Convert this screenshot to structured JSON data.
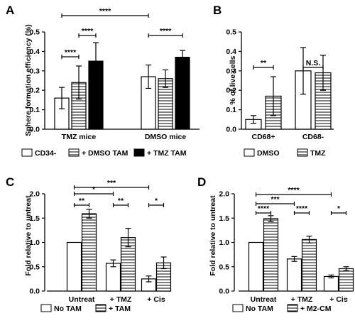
{
  "chart_data": [
    {
      "panel_letter": "A",
      "type": "bar",
      "ylabel": "Sphere formation efficiency (%)",
      "ylim": [
        0,
        0.5
      ],
      "yticks": [
        "0.0",
        "0.1",
        "0.2",
        "0.3",
        "0.4",
        "0.5"
      ],
      "yticks_values": [
        0,
        0.1,
        0.2,
        0.3,
        0.4,
        0.5
      ],
      "categories": [
        "TMZ mice",
        "DMSO mice"
      ],
      "series": [
        {
          "name": "CD34-",
          "fill": "white",
          "values": [
            0.16,
            0.27
          ],
          "errors": [
            0.055,
            0.06
          ]
        },
        {
          "name": "+ DMSO TAM",
          "fill": "hatch",
          "values": [
            0.24,
            0.26
          ],
          "errors": [
            0.085,
            0.045
          ]
        },
        {
          "name": "+ TMZ TAM",
          "fill": "black",
          "values": [
            0.35,
            0.37
          ],
          "errors": [
            0.095,
            0.035
          ]
        }
      ],
      "annotations": [
        {
          "label": "****",
          "from": [
            0,
            0
          ],
          "to": [
            0,
            1
          ],
          "row": 0
        },
        {
          "label": "****",
          "from": [
            0,
            1
          ],
          "to": [
            0,
            2
          ],
          "row": 1
        },
        {
          "label": "****",
          "from": [
            1,
            0
          ],
          "to": [
            1,
            2
          ],
          "row": 1
        },
        {
          "label": "****",
          "from": [
            0,
            0
          ],
          "to": [
            1,
            0
          ],
          "row": 2
        }
      ]
    },
    {
      "panel_letter": "B",
      "type": "bar",
      "ylabel": "% of live cells",
      "ylim": [
        0,
        0.5
      ],
      "yticks": [
        "0.0",
        "0.1",
        "0.2",
        "0.3",
        "0.4",
        "0.5"
      ],
      "yticks_values": [
        0,
        0.1,
        0.2,
        0.3,
        0.4,
        0.5
      ],
      "categories": [
        "CD68+",
        "CD68-"
      ],
      "series": [
        {
          "name": "DMSO",
          "fill": "white",
          "values": [
            0.05,
            0.3
          ],
          "errors": [
            0.02,
            0.12
          ]
        },
        {
          "name": "TMZ",
          "fill": "hatch",
          "values": [
            0.17,
            0.29
          ],
          "errors": [
            0.1,
            0.09
          ]
        }
      ],
      "annotations": [
        {
          "label": "**",
          "from": [
            0,
            0
          ],
          "to": [
            0,
            1
          ],
          "row": 0
        },
        {
          "label": "N.S.",
          "from": [
            1,
            0
          ],
          "to": [
            1,
            1
          ],
          "row": 0
        }
      ]
    },
    {
      "panel_letter": "C",
      "type": "bar",
      "ylabel": "Fold relative to untreat",
      "ylim": [
        0,
        2.0
      ],
      "yticks": [
        "0.0",
        "0.5",
        "1.0",
        "1.5",
        "2.0"
      ],
      "yticks_values": [
        0,
        0.5,
        1.0,
        1.5,
        2.0
      ],
      "categories": [
        "Untreat",
        "+ TMZ",
        "+ Cis"
      ],
      "series": [
        {
          "name": "No TAM",
          "fill": "white",
          "values": [
            1.0,
            0.57,
            0.25
          ],
          "errors": [
            0,
            0.07,
            0.06
          ]
        },
        {
          "name": "+ TAM",
          "fill": "hatch",
          "values": [
            1.59,
            1.1,
            0.58
          ],
          "errors": [
            0.09,
            0.19,
            0.12
          ]
        }
      ],
      "annotations": [
        {
          "label": "**",
          "from": [
            0,
            0
          ],
          "to": [
            0,
            1
          ],
          "row": 0
        },
        {
          "label": "**",
          "from": [
            1,
            0
          ],
          "to": [
            1,
            1
          ],
          "row": 0
        },
        {
          "label": "*",
          "from": [
            2,
            0
          ],
          "to": [
            2,
            1
          ],
          "row": 0
        },
        {
          "label": "*",
          "from": [
            0,
            0
          ],
          "to": [
            1,
            0
          ],
          "row": 1
        },
        {
          "label": "***",
          "from": [
            0,
            0
          ],
          "to": [
            2,
            0
          ],
          "row": 2
        }
      ]
    },
    {
      "panel_letter": "D",
      "type": "bar",
      "ylabel": "Fold relative to untreat",
      "ylim": [
        0,
        2.0
      ],
      "yticks": [
        "0.0",
        "0.5",
        "1.0",
        "1.5",
        "2.0"
      ],
      "yticks_values": [
        0,
        0.5,
        1.0,
        1.5,
        2.0
      ],
      "categories": [
        "Untreat",
        "+ TMZ",
        "+ Cis"
      ],
      "series": [
        {
          "name": "No TAM",
          "fill": "white",
          "values": [
            1.0,
            0.66,
            0.3
          ],
          "errors": [
            0,
            0.05,
            0.03
          ]
        },
        {
          "name": "+ M2-CM",
          "fill": "hatch",
          "values": [
            1.49,
            1.06,
            0.46
          ],
          "errors": [
            0.06,
            0.07,
            0.04
          ]
        }
      ],
      "annotations": [
        {
          "label": "****",
          "from": [
            0,
            0
          ],
          "to": [
            0,
            1
          ],
          "row": 0
        },
        {
          "label": "****",
          "from": [
            1,
            0
          ],
          "to": [
            1,
            1
          ],
          "row": 0
        },
        {
          "label": "*",
          "from": [
            2,
            0
          ],
          "to": [
            2,
            1
          ],
          "row": 0
        },
        {
          "label": "***",
          "from": [
            0,
            0
          ],
          "to": [
            1,
            0
          ],
          "row": 1
        },
        {
          "label": "****",
          "from": [
            0,
            0
          ],
          "to": [
            2,
            0
          ],
          "row": 2
        }
      ]
    }
  ]
}
